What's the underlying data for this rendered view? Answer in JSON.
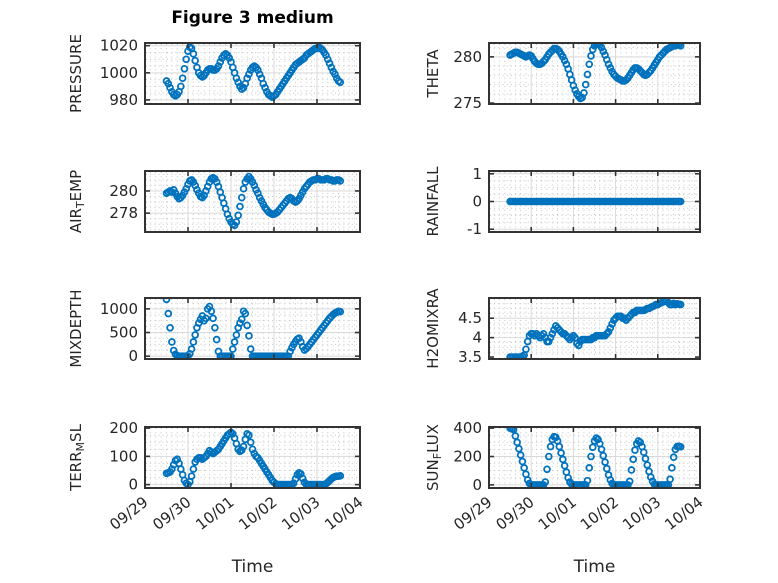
{
  "figure": {
    "title": "Figure 3 medium",
    "marker_color": "#0072BD",
    "marker_style": "open-circle",
    "axes_color": "#333333",
    "text_color": "#262626"
  },
  "x_axis": {
    "label": "Time",
    "tick_labels": [
      "09/29",
      "09/30",
      "10/01",
      "10/02",
      "10/03",
      "10/04"
    ],
    "xlim_days": [
      0,
      5
    ],
    "start_day": 0.5,
    "step_days": 0.0416667,
    "minor_step_days": 0.125
  },
  "chart_data": [
    {
      "type": "scatter",
      "name": "pressure",
      "row": 0,
      "col": 0,
      "ylabel": "PRESSURE",
      "ylabel_segments": [
        {
          "text": "PRESSURE"
        }
      ],
      "ylim": [
        977,
        1022
      ],
      "yticks": [
        980,
        1000,
        1020
      ],
      "ytick_labels": [
        "980",
        "1000",
        "1020"
      ],
      "y_minor_step": 5,
      "values": [
        994,
        992,
        989,
        986,
        984,
        983,
        984,
        986,
        990,
        996,
        1003,
        1010,
        1016,
        1019,
        1018,
        1014,
        1009,
        1004,
        1000,
        998,
        997,
        998,
        1000,
        1002,
        1003,
        1003,
        1002,
        1002,
        1003,
        1005,
        1008,
        1011,
        1013,
        1014,
        1013,
        1011,
        1008,
        1004,
        1000,
        996,
        993,
        990,
        988,
        989,
        992,
        996,
        999,
        1002,
        1004,
        1005,
        1004,
        1002,
        999,
        996,
        992,
        989,
        986,
        984,
        983,
        982,
        983,
        984,
        986,
        988,
        990,
        992,
        994,
        996,
        998,
        1000,
        1002,
        1004,
        1006,
        1007,
        1008,
        1009,
        1010,
        1011,
        1013,
        1014,
        1015,
        1016,
        1017,
        1018,
        1018,
        1019,
        1018,
        1017,
        1015,
        1013,
        1010,
        1007,
        1004,
        1001,
        999,
        996,
        994,
        993
      ]
    },
    {
      "type": "scatter",
      "name": "theta",
      "row": 0,
      "col": 1,
      "ylabel": "THETA",
      "ylabel_segments": [
        {
          "text": "THETA"
        }
      ],
      "ylim": [
        274.9,
        281.5
      ],
      "yticks": [
        275,
        280
      ],
      "ytick_labels": [
        "275",
        "280"
      ],
      "y_minor_step": 1,
      "values": [
        280.2,
        280.3,
        280.4,
        280.5,
        280.5,
        280.4,
        280.3,
        280.2,
        280.1,
        280.0,
        280.1,
        280.2,
        280.1,
        279.8,
        279.5,
        279.3,
        279.2,
        279.2,
        279.3,
        279.5,
        279.7,
        280.0,
        280.3,
        280.5,
        280.7,
        280.9,
        280.9,
        280.8,
        280.6,
        280.3,
        280.0,
        279.6,
        279.2,
        278.7,
        278.1,
        277.5,
        276.9,
        276.4,
        276.0,
        275.7,
        275.5,
        275.6,
        276.1,
        277.0,
        278.1,
        279.2,
        280.1,
        280.8,
        281.2,
        281.4,
        281.4,
        281.3,
        281.0,
        280.6,
        280.2,
        279.7,
        279.2,
        278.8,
        278.4,
        278.1,
        277.9,
        277.7,
        277.6,
        277.5,
        277.4,
        277.4,
        277.5,
        277.7,
        278.0,
        278.3,
        278.6,
        278.8,
        278.8,
        278.7,
        278.5,
        278.3,
        278.1,
        278.0,
        278.1,
        278.3,
        278.5,
        278.8,
        279.1,
        279.4,
        279.7,
        280.0,
        280.2,
        280.4,
        280.6,
        280.8,
        280.9,
        281.0,
        281.1,
        281.2,
        281.2,
        281.3,
        281.3,
        281.2
      ]
    },
    {
      "type": "scatter",
      "name": "air-temp",
      "row": 1,
      "col": 0,
      "ylabel": "AIR_TEMP",
      "ylabel_segments": [
        {
          "text": "AIR"
        },
        {
          "text": "T",
          "sub": true
        },
        {
          "text": "EMP"
        }
      ],
      "ylim": [
        276.3,
        281.8
      ],
      "yticks": [
        278,
        280
      ],
      "ytick_labels": [
        "278",
        "280"
      ],
      "y_minor_step": 0.5,
      "values": [
        279.8,
        279.9,
        280.0,
        279.9,
        280.1,
        279.8,
        279.5,
        279.3,
        279.4,
        279.6,
        279.9,
        280.2,
        280.6,
        280.9,
        281.0,
        280.8,
        280.5,
        280.1,
        279.8,
        279.5,
        279.4,
        279.6,
        280.0,
        280.4,
        280.8,
        281.1,
        281.2,
        281.1,
        280.8,
        280.4,
        279.9,
        279.4,
        278.9,
        278.4,
        277.9,
        277.5,
        277.2,
        277.0,
        276.9,
        277.2,
        277.8,
        278.6,
        279.4,
        280.2,
        280.8,
        281.1,
        281.3,
        281.1,
        280.8,
        280.5,
        280.1,
        279.8,
        279.4,
        279.1,
        278.8,
        278.5,
        278.3,
        278.1,
        278.0,
        277.9,
        277.9,
        278.0,
        278.1,
        278.3,
        278.5,
        278.7,
        278.9,
        279.1,
        279.3,
        279.4,
        279.3,
        279.1,
        279.0,
        279.1,
        279.3,
        279.6,
        279.9,
        280.2,
        280.4,
        280.6,
        280.8,
        280.9,
        281.0,
        281.0,
        281.1,
        281.1,
        281.0,
        281.0,
        281.0,
        281.1,
        281.1,
        281.0,
        281.0,
        280.9,
        280.9,
        281.0,
        281.0,
        280.9
      ]
    },
    {
      "type": "scatter",
      "name": "rainfall",
      "row": 1,
      "col": 1,
      "ylabel": "RAINFALL",
      "ylabel_segments": [
        {
          "text": "RAINFALL"
        }
      ],
      "ylim": [
        -1.1,
        1.1
      ],
      "yticks": [
        -1,
        0,
        1
      ],
      "ytick_labels": [
        "-1",
        "0",
        "1"
      ],
      "y_minor_step": 0.25,
      "values": [
        0,
        0,
        0,
        0,
        0,
        0,
        0,
        0,
        0,
        0,
        0,
        0,
        0,
        0,
        0,
        0,
        0,
        0,
        0,
        0,
        0,
        0,
        0,
        0,
        0,
        0,
        0,
        0,
        0,
        0,
        0,
        0,
        0,
        0,
        0,
        0,
        0,
        0,
        0,
        0,
        0,
        0,
        0,
        0,
        0,
        0,
        0,
        0,
        0,
        0,
        0,
        0,
        0,
        0,
        0,
        0,
        0,
        0,
        0,
        0,
        0,
        0,
        0,
        0,
        0,
        0,
        0,
        0,
        0,
        0,
        0,
        0,
        0,
        0,
        0,
        0,
        0,
        0,
        0,
        0,
        0,
        0,
        0,
        0,
        0,
        0,
        0,
        0,
        0,
        0,
        0,
        0,
        0,
        0,
        0,
        0,
        0,
        0
      ]
    },
    {
      "type": "scatter",
      "name": "mixdepth",
      "row": 2,
      "col": 0,
      "ylabel": "MIXDEPTH",
      "ylabel_segments": [
        {
          "text": "MIXDEPTH"
        }
      ],
      "ylim": [
        -60,
        1230
      ],
      "yticks": [
        0,
        500,
        1000
      ],
      "ytick_labels": [
        "0",
        "500",
        "1000"
      ],
      "y_minor_step": 125,
      "values": [
        1200,
        900,
        600,
        300,
        120,
        40,
        10,
        0,
        0,
        0,
        0,
        0,
        0,
        50,
        150,
        300,
        450,
        600,
        700,
        780,
        850,
        750,
        800,
        1000,
        1050,
        950,
        800,
        600,
        350,
        100,
        0,
        0,
        0,
        0,
        0,
        0,
        0,
        150,
        300,
        450,
        600,
        700,
        780,
        950,
        900,
        650,
        430,
        150,
        0,
        0,
        0,
        0,
        0,
        0,
        0,
        0,
        0,
        0,
        0,
        0,
        0,
        0,
        0,
        0,
        0,
        0,
        0,
        0,
        0,
        100,
        180,
        250,
        310,
        360,
        380,
        300,
        200,
        130,
        160,
        200,
        250,
        300,
        350,
        400,
        450,
        500,
        550,
        600,
        650,
        700,
        750,
        800,
        840,
        880,
        910,
        930,
        950,
        940
      ]
    },
    {
      "type": "scatter",
      "name": "h2omixra",
      "row": 2,
      "col": 1,
      "ylabel": "H2OMIXRA",
      "ylabel_segments": [
        {
          "text": "H2OMIXRA"
        }
      ],
      "ylim": [
        3.45,
        5.02
      ],
      "yticks": [
        3.5,
        4,
        4.5
      ],
      "ytick_labels": [
        "3.5",
        "4",
        "4.5"
      ],
      "y_minor_step": 0.125,
      "values": [
        3.5,
        3.5,
        3.5,
        3.5,
        3.5,
        3.5,
        3.5,
        3.52,
        3.55,
        3.7,
        3.9,
        4.05,
        4.1,
        4.1,
        4.05,
        4.1,
        4.05,
        4.0,
        4.05,
        4.1,
        4.0,
        3.9,
        3.9,
        4.0,
        4.1,
        4.2,
        4.3,
        4.25,
        4.2,
        4.15,
        4.1,
        4.1,
        4.05,
        4.0,
        3.95,
        4.0,
        4.05,
        4.0,
        3.85,
        3.8,
        3.9,
        3.95,
        3.95,
        3.95,
        3.95,
        3.95,
        3.95,
        4.0,
        4.0,
        4.05,
        4.05,
        4.05,
        4.05,
        4.05,
        4.05,
        4.1,
        4.15,
        4.25,
        4.35,
        4.45,
        4.5,
        4.55,
        4.55,
        4.55,
        4.5,
        4.5,
        4.45,
        4.5,
        4.55,
        4.6,
        4.65,
        4.65,
        4.7,
        4.7,
        4.7,
        4.7,
        4.7,
        4.72,
        4.75,
        4.75,
        4.78,
        4.8,
        4.82,
        4.85,
        4.85,
        4.88,
        4.9,
        4.92,
        4.95,
        4.95,
        4.9,
        4.85,
        4.85,
        4.88,
        4.85,
        4.87,
        4.86,
        4.85
      ]
    },
    {
      "type": "scatter",
      "name": "terr-msl",
      "row": 3,
      "col": 0,
      "ylabel": "TERR_MSL",
      "ylabel_segments": [
        {
          "text": "TERR"
        },
        {
          "text": "M",
          "sub": true
        },
        {
          "text": "SL"
        }
      ],
      "ylim": [
        -12,
        204
      ],
      "yticks": [
        0,
        100,
        200
      ],
      "ytick_labels": [
        "0",
        "100",
        "200"
      ],
      "y_minor_step": 25,
      "values": [
        40,
        42,
        45,
        55,
        70,
        85,
        90,
        75,
        55,
        35,
        15,
        5,
        0,
        10,
        30,
        55,
        80,
        90,
        95,
        95,
        90,
        95,
        100,
        110,
        120,
        115,
        110,
        115,
        120,
        125,
        135,
        145,
        155,
        165,
        175,
        180,
        185,
        180,
        165,
        145,
        125,
        118,
        122,
        135,
        160,
        180,
        175,
        150,
        125,
        110,
        100,
        95,
        85,
        75,
        65,
        55,
        45,
        35,
        25,
        15,
        8,
        3,
        0,
        0,
        0,
        0,
        0,
        0,
        0,
        0,
        0,
        5,
        20,
        35,
        42,
        38,
        22,
        8,
        0,
        0,
        0,
        0,
        0,
        0,
        0,
        0,
        0,
        0,
        0,
        3,
        8,
        14,
        20,
        25,
        28,
        30,
        30,
        31
      ]
    },
    {
      "type": "scatter",
      "name": "sun-flux",
      "row": 3,
      "col": 1,
      "ylabel": "SUN_FLUX",
      "ylabel_segments": [
        {
          "text": "SUN"
        },
        {
          "text": "F",
          "sub": true
        },
        {
          "text": "LUX"
        }
      ],
      "ylim": [
        -22,
        408
      ],
      "yticks": [
        0,
        200,
        400
      ],
      "ytick_labels": [
        "0",
        "200",
        "400"
      ],
      "y_minor_step": 50,
      "values": [
        400,
        395,
        390,
        345,
        300,
        255,
        210,
        165,
        120,
        75,
        35,
        10,
        0,
        0,
        0,
        0,
        0,
        0,
        0,
        0,
        20,
        110,
        200,
        270,
        320,
        340,
        335,
        310,
        270,
        225,
        180,
        135,
        90,
        50,
        20,
        5,
        0,
        0,
        0,
        0,
        0,
        0,
        0,
        0,
        30,
        120,
        200,
        265,
        310,
        330,
        320,
        290,
        250,
        205,
        160,
        115,
        70,
        35,
        10,
        0,
        0,
        0,
        0,
        0,
        0,
        0,
        0,
        0,
        25,
        105,
        180,
        245,
        290,
        310,
        300,
        270,
        230,
        185,
        140,
        95,
        55,
        25,
        5,
        0,
        0,
        0,
        0,
        0,
        0,
        0,
        0,
        40,
        120,
        195,
        250,
        270,
        272,
        268
      ]
    }
  ]
}
